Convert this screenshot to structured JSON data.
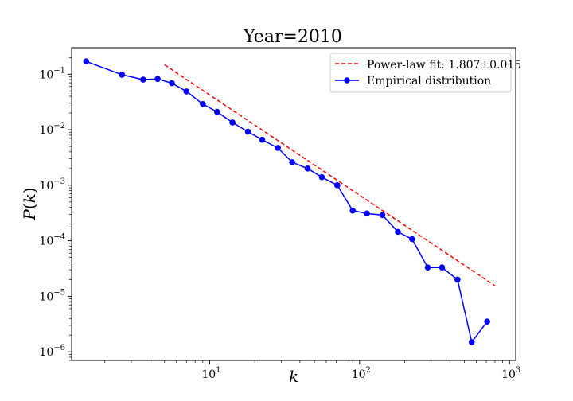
{
  "chart_data": {
    "type": "line",
    "title": "Year=2010",
    "xlabel": "k",
    "ylabel": "P(k)",
    "xscale": "log",
    "yscale": "log",
    "xlim": [
      1.2,
      1100
    ],
    "ylim": [
      7e-07,
      0.3
    ],
    "grid": false,
    "legend_position": "top-right",
    "x_ticks": [
      {
        "value": 10,
        "base": "10",
        "exp": "1"
      },
      {
        "value": 100,
        "base": "10",
        "exp": "2"
      },
      {
        "value": 1000,
        "base": "10",
        "exp": "3"
      }
    ],
    "y_ticks": [
      {
        "value": 1e-06,
        "base": "10",
        "exp": "−6"
      },
      {
        "value": 1e-05,
        "base": "10",
        "exp": "−5"
      },
      {
        "value": 0.0001,
        "base": "10",
        "exp": "−4"
      },
      {
        "value": 0.001,
        "base": "10",
        "exp": "−3"
      },
      {
        "value": 0.01,
        "base": "10",
        "exp": "−2"
      },
      {
        "value": 0.1,
        "base": "10",
        "exp": "−1"
      }
    ],
    "series": [
      {
        "name": "Power-law fit: 1.807±0.015",
        "style": "dashed",
        "color": "#ff0000",
        "x": [
          5,
          800
        ],
        "y": [
          0.148,
          1.55e-05
        ]
      },
      {
        "name": "Empirical distribution",
        "style": "solid-markers",
        "color": "#0000ff",
        "x": [
          1.5,
          2.6,
          3.6,
          4.5,
          5.6,
          7.0,
          9.0,
          11.2,
          14.2,
          18.0,
          22.4,
          28.5,
          35.5,
          45,
          56,
          71,
          90,
          112,
          142,
          180,
          224,
          285,
          355,
          450,
          560,
          710
        ],
        "y": [
          0.17,
          0.098,
          0.08,
          0.082,
          0.069,
          0.049,
          0.029,
          0.021,
          0.0135,
          0.0092,
          0.0066,
          0.0047,
          0.0026,
          0.002,
          0.0014,
          0.001,
          0.00035,
          0.00031,
          0.00029,
          0.000145,
          0.000107,
          3.3e-05,
          3.3e-05,
          2e-05,
          1.5e-06,
          3.5e-06
        ]
      }
    ]
  }
}
